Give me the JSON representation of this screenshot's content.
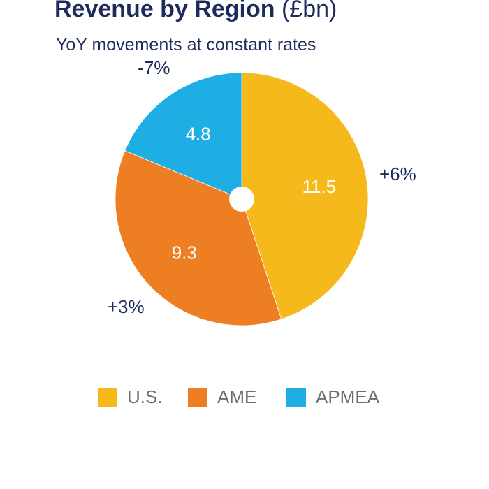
{
  "chart_data": {
    "type": "pie",
    "title": "Revenue by Region",
    "title_unit": "(£bn)",
    "subtitle": "YoY movements at constant rates",
    "start_angle": "top, clockwise",
    "slices": [
      {
        "name": "U.S.",
        "value": 11.5,
        "label": "11.5",
        "change": "+6%",
        "color": "#f6b91c"
      },
      {
        "name": "AME",
        "value": 9.3,
        "label": "9.3",
        "change": "+3%",
        "color": "#ee7e22"
      },
      {
        "name": "APMEA",
        "value": 4.8,
        "label": "4.8",
        "change": "-7%",
        "color": "#1eaee4"
      }
    ],
    "legend_position": "bottom",
    "center_hole": true
  }
}
